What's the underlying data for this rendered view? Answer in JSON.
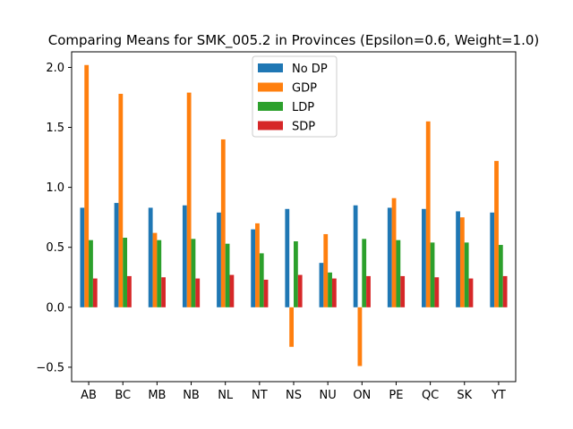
{
  "chart_data": {
    "type": "bar",
    "title": "Comparing Means for SMK_005.2 in Provinces (Epsilon=0.6, Weight=1.0)",
    "xlabel": "",
    "ylabel": "",
    "categories": [
      "AB",
      "BC",
      "MB",
      "NB",
      "NL",
      "NT",
      "NS",
      "NU",
      "ON",
      "PE",
      "QC",
      "SK",
      "YT"
    ],
    "ylim": [
      -0.62,
      2.13
    ],
    "yticks": [
      -0.5,
      0.0,
      0.5,
      1.0,
      1.5,
      2.0
    ],
    "ytick_labels": [
      "−0.5",
      "0.0",
      "0.5",
      "1.0",
      "1.5",
      "2.0"
    ],
    "grid": false,
    "legend_position": "top-center",
    "series": [
      {
        "name": "No DP",
        "color": "#1f77b4",
        "values": [
          0.83,
          0.87,
          0.83,
          0.85,
          0.79,
          0.65,
          0.82,
          0.37,
          0.85,
          0.83,
          0.82,
          0.8,
          0.79
        ]
      },
      {
        "name": "GDP",
        "color": "#ff7f0e",
        "values": [
          2.02,
          1.78,
          0.62,
          1.79,
          1.4,
          0.7,
          -0.33,
          0.61,
          -0.49,
          0.91,
          1.55,
          0.75,
          1.22
        ]
      },
      {
        "name": "LDP",
        "color": "#2ca02c",
        "values": [
          0.56,
          0.58,
          0.56,
          0.57,
          0.53,
          0.45,
          0.55,
          0.29,
          0.57,
          0.56,
          0.54,
          0.54,
          0.52
        ]
      },
      {
        "name": "SDP",
        "color": "#d62728",
        "values": [
          0.24,
          0.26,
          0.25,
          0.24,
          0.27,
          0.23,
          0.27,
          0.24,
          0.26,
          0.26,
          0.25,
          0.24,
          0.26
        ]
      }
    ]
  }
}
